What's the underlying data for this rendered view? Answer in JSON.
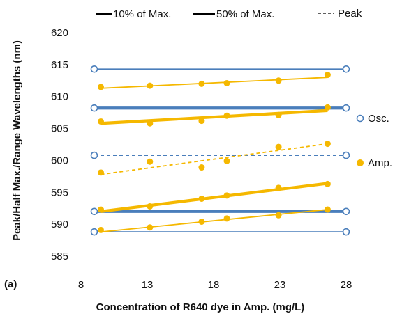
{
  "chart_data": {
    "type": "scatter",
    "panel_label": "(a)",
    "xlabel": "Concentration of  R640 dye in Amp. (mg/L)",
    "ylabel": "Peak/Half Max./Range Wavelengths (nm)",
    "xlim": [
      8,
      28
    ],
    "ylim": [
      585,
      620
    ],
    "xticks": [
      8,
      13,
      18,
      23,
      28
    ],
    "yticks": [
      585,
      590,
      595,
      600,
      605,
      610,
      615,
      620
    ],
    "grid": false,
    "colors": {
      "osc": "#4a7ebb",
      "amp": "#f5b800"
    },
    "legend_top": [
      {
        "label": "10% of Max.",
        "style": "thin-solid"
      },
      {
        "label": "50% of Max.",
        "style": "thick-solid"
      },
      {
        "label": "Peak",
        "style": "dashed"
      }
    ],
    "legend_right": [
      {
        "label": "Osc.",
        "marker": "open-circle",
        "color": "#4a7ebb"
      },
      {
        "label": "Amp.",
        "marker": "filled-circle",
        "color": "#f5b800"
      }
    ],
    "series": [
      {
        "group": "Osc.",
        "line": "10% of Max.",
        "points": [
          [
            9,
            614.3
          ],
          [
            28,
            614.3
          ]
        ]
      },
      {
        "group": "Osc.",
        "line": "50% of Max.",
        "points": [
          [
            9,
            608.2
          ],
          [
            28,
            608.2
          ]
        ]
      },
      {
        "group": "Osc.",
        "line": "Peak",
        "points": [
          [
            9,
            600.8
          ],
          [
            28,
            600.8
          ]
        ]
      },
      {
        "group": "Osc.",
        "line": "50% of Max.",
        "points": [
          [
            9,
            592.0
          ],
          [
            28,
            592.0
          ]
        ]
      },
      {
        "group": "Osc.",
        "line": "10% of Max.",
        "points": [
          [
            9,
            588.8
          ],
          [
            28,
            588.8
          ]
        ]
      },
      {
        "group": "Amp.",
        "line": "10% of Max.",
        "points": [
          [
            9.5,
            611.5
          ],
          [
            13.2,
            611.7
          ],
          [
            17.1,
            612.0
          ],
          [
            19.0,
            612.1
          ],
          [
            22.9,
            612.5
          ],
          [
            26.6,
            613.4
          ]
        ],
        "fit": [
          [
            9.5,
            611.3
          ],
          [
            26.6,
            613.0
          ]
        ]
      },
      {
        "group": "Amp.",
        "line": "50% of Max.",
        "points": [
          [
            9.5,
            606.1
          ],
          [
            13.2,
            605.8
          ],
          [
            17.1,
            606.2
          ],
          [
            19.0,
            607.0
          ],
          [
            22.9,
            607.1
          ],
          [
            26.6,
            608.3
          ]
        ],
        "fit": [
          [
            9.5,
            605.8
          ],
          [
            26.6,
            607.8
          ]
        ]
      },
      {
        "group": "Amp.",
        "line": "Peak",
        "points": [
          [
            9.5,
            598.1
          ],
          [
            13.2,
            599.8
          ],
          [
            17.1,
            598.9
          ],
          [
            19.0,
            599.9
          ],
          [
            22.9,
            602.1
          ],
          [
            26.6,
            602.6
          ]
        ],
        "fit": [
          [
            9.5,
            597.8
          ],
          [
            26.6,
            602.6
          ]
        ]
      },
      {
        "group": "Amp.",
        "line": "50% of Max.",
        "points": [
          [
            9.5,
            592.3
          ],
          [
            13.2,
            592.8
          ],
          [
            17.1,
            594.0
          ],
          [
            19.0,
            594.5
          ],
          [
            22.9,
            595.7
          ],
          [
            26.6,
            596.3
          ]
        ],
        "fit": [
          [
            9.5,
            592.0
          ],
          [
            26.6,
            596.4
          ]
        ]
      },
      {
        "group": "Amp.",
        "line": "10% of Max.",
        "points": [
          [
            9.5,
            589.1
          ],
          [
            13.2,
            589.5
          ],
          [
            17.1,
            590.4
          ],
          [
            19.0,
            590.9
          ],
          [
            22.9,
            591.4
          ],
          [
            26.6,
            592.3
          ]
        ],
        "fit": [
          [
            9.5,
            588.8
          ],
          [
            26.6,
            592.3
          ]
        ]
      }
    ]
  }
}
